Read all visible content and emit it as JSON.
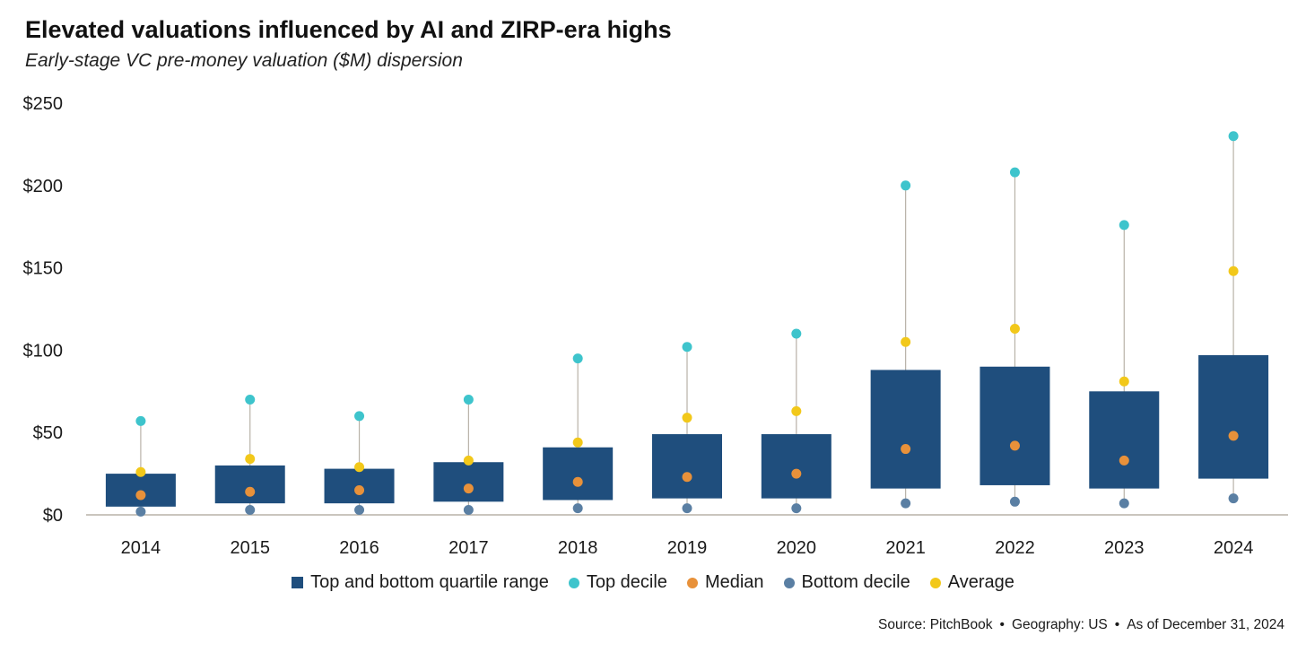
{
  "title": "Elevated valuations influenced by AI and ZIRP-era highs",
  "subtitle": "Early-stage VC pre-money valuation ($M) dispersion",
  "colors": {
    "box": "#1f4e7d",
    "top_decile": "#3ec4cc",
    "median": "#e8913a",
    "bottom_decile": "#5a7fa3",
    "average": "#f2c81a",
    "whisker": "#b8b2a8",
    "axis": "#b8b2a8"
  },
  "legend": {
    "box": "Top and bottom quartile range",
    "top_decile": "Top decile",
    "median": "Median",
    "bottom_decile": "Bottom decile",
    "average": "Average"
  },
  "source": {
    "part1": "Source: PitchBook",
    "part2": "Geography: US",
    "part3": "As of December 31, 2024",
    "separator": "•"
  },
  "chart_data": {
    "type": "box",
    "title": "Elevated valuations influenced by AI and ZIRP-era highs",
    "subtitle": "Early-stage VC pre-money valuation ($M) dispersion",
    "xlabel": "",
    "ylabel": "",
    "ylim": [
      0,
      250
    ],
    "y_ticks": [
      0,
      50,
      100,
      150,
      200,
      250
    ],
    "y_tick_labels": [
      "$0",
      "$50",
      "$100",
      "$150",
      "$200",
      "$250"
    ],
    "grid": false,
    "legend_position": "bottom",
    "categories": [
      "2014",
      "2015",
      "2016",
      "2017",
      "2018",
      "2019",
      "2020",
      "2021",
      "2022",
      "2023",
      "2024"
    ],
    "quartile_low": [
      5,
      7,
      7,
      8,
      9,
      10,
      10,
      16,
      18,
      16,
      22
    ],
    "quartile_high": [
      25,
      30,
      28,
      32,
      41,
      49,
      49,
      88,
      90,
      75,
      97
    ],
    "top_decile": [
      57,
      70,
      60,
      70,
      95,
      102,
      110,
      200,
      208,
      176,
      230
    ],
    "median": [
      12,
      14,
      15,
      16,
      20,
      23,
      25,
      40,
      42,
      33,
      48
    ],
    "bottom_decile": [
      2,
      3,
      3,
      3,
      4,
      4,
      4,
      7,
      8,
      7,
      10
    ],
    "average": [
      26,
      34,
      29,
      33,
      44,
      59,
      63,
      105,
      113,
      81,
      148
    ]
  }
}
